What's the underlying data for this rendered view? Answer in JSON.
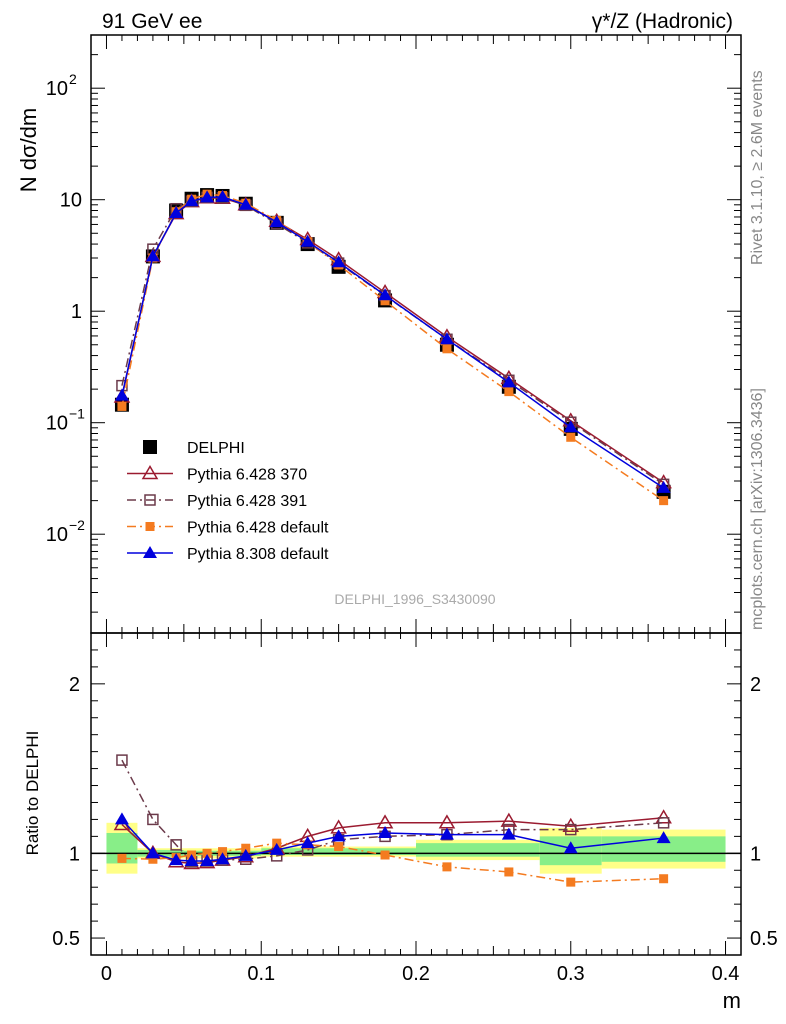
{
  "header": {
    "left_title": "91 GeV ee",
    "right_title": "γ*/Z (Hadronic)",
    "side_rivet": "Rivet 3.1.10, ≥ 2.6M events",
    "side_mcplots": "mcplots.cern.ch [arXiv:1306.3436]",
    "analysis_label": "DELPHI_1996_S3430090"
  },
  "chart_data": [
    {
      "type": "scatter",
      "panel": "main",
      "ylabel": "N dσ/dm",
      "yscale": "log",
      "ylim": [
        0.0013,
        300
      ],
      "xlim": [
        -0.01,
        0.41
      ],
      "y_ticks": [
        {
          "value": 0.01,
          "base": "10",
          "exp": "−2"
        },
        {
          "value": 0.1,
          "base": "10",
          "exp": "−1"
        },
        {
          "value": 1,
          "label": "1"
        },
        {
          "value": 10,
          "label": "10"
        },
        {
          "value": 100,
          "base": "10",
          "exp": "2"
        }
      ],
      "x": [
        0.01,
        0.03,
        0.045,
        0.055,
        0.065,
        0.075,
        0.09,
        0.11,
        0.13,
        0.15,
        0.18,
        0.22,
        0.26,
        0.3,
        0.36
      ],
      "series": [
        {
          "name": "DELPHI",
          "color": "#000000",
          "marker": "square-filled",
          "line": "none",
          "values": [
            0.145,
            3.1,
            8.0,
            10.2,
            11.0,
            10.8,
            9.2,
            6.2,
            4.0,
            2.5,
            1.25,
            0.5,
            0.21,
            0.088,
            0.024
          ]
        },
        {
          "name": "Pythia 6.428 370",
          "color": "#9b1b30",
          "marker": "triangle-open",
          "line": "solid",
          "values": [
            0.17,
            3.1,
            7.5,
            9.6,
            10.4,
            10.3,
            9.0,
            6.4,
            4.4,
            2.9,
            1.47,
            0.59,
            0.25,
            0.104,
            0.029
          ]
        },
        {
          "name": "Pythia 6.428 391",
          "color": "#6b3a4a",
          "marker": "square-open",
          "line": "dashdot",
          "values": [
            0.215,
            3.6,
            8.3,
            9.7,
            10.5,
            10.4,
            8.9,
            6.1,
            4.1,
            2.7,
            1.38,
            0.56,
            0.24,
            0.101,
            0.028
          ]
        },
        {
          "name": "Pythia 6.428 default",
          "color": "#f47b20",
          "marker": "square-filled-small",
          "line": "dashdot",
          "values": [
            0.14,
            3.0,
            7.8,
            10.1,
            11.2,
            10.9,
            9.3,
            6.5,
            4.2,
            2.6,
            1.24,
            0.46,
            0.19,
            0.074,
            0.02
          ]
        },
        {
          "name": "Pythia 8.308 default",
          "color": "#0000dd",
          "marker": "triangle-filled",
          "line": "solid",
          "values": [
            0.175,
            3.1,
            7.6,
            9.7,
            10.5,
            10.6,
            9.0,
            6.3,
            4.2,
            2.75,
            1.39,
            0.56,
            0.23,
            0.091,
            0.026
          ]
        }
      ]
    },
    {
      "type": "line",
      "panel": "ratio",
      "ylabel": "Ratio to DELPHI",
      "xlabel": "m",
      "ylim": [
        0.4,
        2.3
      ],
      "xlim": [
        -0.01,
        0.41
      ],
      "x_ticks": [
        "0",
        "0.1",
        "0.2",
        "0.3",
        "0.4"
      ],
      "y_ticks": [
        "0.5",
        "1",
        "2"
      ],
      "uncertainty_bands": {
        "bins": [
          [
            0.0,
            0.02
          ],
          [
            0.02,
            0.05
          ],
          [
            0.05,
            0.1
          ],
          [
            0.1,
            0.2
          ],
          [
            0.2,
            0.28
          ],
          [
            0.28,
            0.32
          ],
          [
            0.32,
            0.4
          ]
        ],
        "yellow": [
          [
            0.88,
            1.18
          ],
          [
            0.97,
            1.03
          ],
          [
            0.97,
            1.03
          ],
          [
            0.98,
            1.04
          ],
          [
            0.96,
            1.08
          ],
          [
            0.88,
            1.15
          ],
          [
            0.91,
            1.14
          ]
        ],
        "green": [
          [
            0.94,
            1.12
          ],
          [
            0.98,
            1.02
          ],
          [
            0.985,
            1.015
          ],
          [
            0.99,
            1.03
          ],
          [
            0.98,
            1.06
          ],
          [
            0.93,
            1.1
          ],
          [
            0.95,
            1.1
          ]
        ]
      },
      "x": [
        0.01,
        0.03,
        0.045,
        0.055,
        0.065,
        0.075,
        0.09,
        0.11,
        0.13,
        0.15,
        0.18,
        0.22,
        0.26,
        0.3,
        0.36
      ],
      "series": [
        {
          "name": "Pythia 6.428 370",
          "values": [
            1.17,
            1.0,
            0.95,
            0.94,
            0.945,
            0.96,
            0.98,
            1.03,
            1.1,
            1.15,
            1.18,
            1.18,
            1.19,
            1.16,
            1.21
          ]
        },
        {
          "name": "Pythia 6.428 391",
          "values": [
            1.55,
            1.2,
            1.05,
            0.95,
            0.955,
            0.96,
            0.965,
            0.985,
            1.02,
            1.08,
            1.1,
            1.11,
            1.14,
            1.14,
            1.18
          ]
        },
        {
          "name": "Pythia 6.428 default",
          "values": [
            0.97,
            0.965,
            0.975,
            0.99,
            1.0,
            1.01,
            1.03,
            1.06,
            1.05,
            1.04,
            0.99,
            0.92,
            0.89,
            0.83,
            0.85
          ]
        },
        {
          "name": "Pythia 8.308 default",
          "values": [
            1.2,
            1.0,
            0.96,
            0.955,
            0.955,
            0.965,
            0.985,
            1.02,
            1.06,
            1.1,
            1.12,
            1.11,
            1.11,
            1.03,
            1.09
          ]
        }
      ]
    }
  ]
}
